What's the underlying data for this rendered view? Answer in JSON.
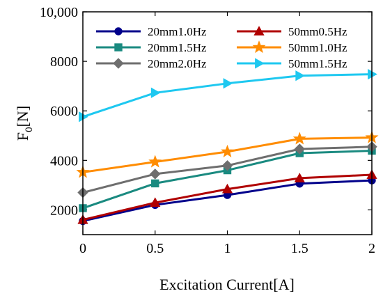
{
  "chart_data": {
    "type": "line",
    "xlabel": "Excitation Current[A]",
    "ylabel_main": "F",
    "ylabel_sub": "0",
    "ylabel_suffix": "[N]",
    "xlim": [
      0,
      2
    ],
    "ylim": [
      1000,
      10000
    ],
    "xticks": [
      0,
      0.5,
      1,
      1.5,
      2
    ],
    "xtick_labels": [
      "0",
      "0.5",
      "1",
      "1.5",
      "2"
    ],
    "yticks": [
      2000,
      4000,
      6000,
      8000,
      10000
    ],
    "ytick_labels": [
      "2000",
      "4000",
      "6000",
      "8000",
      "10,000"
    ],
    "grid": false,
    "legend_position": "top",
    "x": [
      0,
      0.5,
      1,
      1.5,
      2
    ],
    "series": [
      {
        "name": "20mm1.0Hz",
        "color": "#00008b",
        "marker": "circle",
        "values": [
          1550,
          2200,
          2600,
          3060,
          3190
        ]
      },
      {
        "name": "20mm1.5Hz",
        "color": "#1a8a80",
        "marker": "square",
        "values": [
          2070,
          3070,
          3600,
          4290,
          4390
        ]
      },
      {
        "name": "20mm2.0Hz",
        "color": "#6e6e6e",
        "marker": "diamond",
        "values": [
          2700,
          3450,
          3790,
          4460,
          4550
        ]
      },
      {
        "name": "50mm0.5Hz",
        "color": "#b00000",
        "marker": "triangle-up",
        "values": [
          1600,
          2290,
          2840,
          3280,
          3420
        ]
      },
      {
        "name": "50mm1.0Hz",
        "color": "#ff8c00",
        "marker": "star",
        "values": [
          3520,
          3940,
          4350,
          4870,
          4920
        ]
      },
      {
        "name": "50mm1.5Hz",
        "color": "#1ec8f0",
        "marker": "triangle-right",
        "values": [
          5760,
          6730,
          7110,
          7420,
          7480
        ]
      }
    ]
  }
}
